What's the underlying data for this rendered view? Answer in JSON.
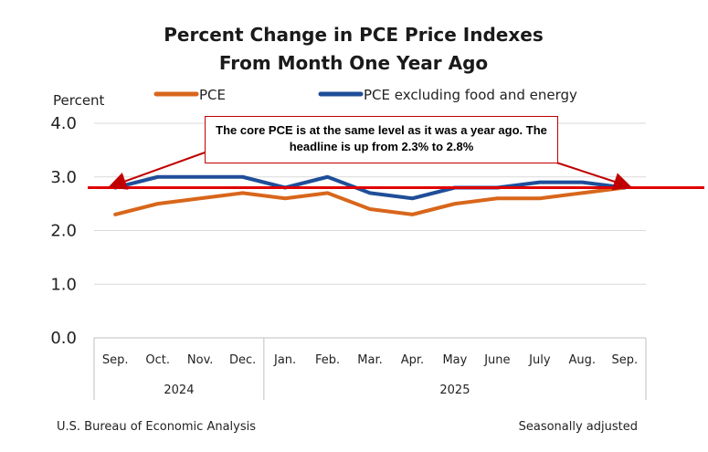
{
  "chart_data": {
    "type": "line",
    "title_lines": [
      "Percent Change in PCE Price Indexes",
      "From Month One Year Ago"
    ],
    "ylabel": "Percent",
    "ylim": [
      0,
      4
    ],
    "yticks": [
      "0.0",
      "1.0",
      "2.0",
      "3.0",
      "4.0"
    ],
    "categories": [
      "Sep.",
      "Oct.",
      "Nov.",
      "Dec.",
      "Jan.",
      "Feb.",
      "Mar.",
      "Apr.",
      "May",
      "June",
      "July",
      "Aug.",
      "Sep."
    ],
    "year_groups": [
      {
        "label": "2024",
        "start": 0,
        "end": 3
      },
      {
        "label": "2025",
        "start": 4,
        "end": 12
      }
    ],
    "series": [
      {
        "name": "PCE",
        "color": "#d8661b",
        "values": [
          2.3,
          2.5,
          2.6,
          2.7,
          2.6,
          2.7,
          2.4,
          2.3,
          2.5,
          2.6,
          2.6,
          2.7,
          2.8
        ]
      },
      {
        "name": "PCE excluding food and energy",
        "color": "#1f4e99",
        "values": [
          2.8,
          3.0,
          3.0,
          3.0,
          2.8,
          3.0,
          2.7,
          2.6,
          2.8,
          2.8,
          2.9,
          2.9,
          2.8
        ]
      }
    ],
    "reference_line": {
      "value": 2.8,
      "color": "#e00000"
    },
    "annotation": "The core PCE is at the same level as it was a year ago.  The headline is up from 2.3% to 2.8%",
    "source": "U.S. Bureau of Economic Analysis",
    "note": "Seasonally adjusted",
    "grid": true
  }
}
